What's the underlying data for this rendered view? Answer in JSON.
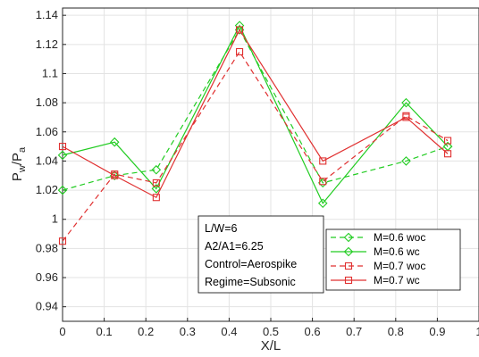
{
  "chart_data": {
    "type": "line",
    "title": "",
    "xlabel": "X/L",
    "ylabel_main": "P",
    "ylabel_sub1": "w",
    "ylabel_sep": "/P",
    "ylabel_sub2": "a",
    "xlim": [
      0,
      1
    ],
    "ylim": [
      0.93,
      1.145
    ],
    "xticks": [
      "0",
      "0.1",
      "0.2",
      "0.3",
      "0.4",
      "0.5",
      "0.6",
      "0.7",
      "0.8",
      "0.9",
      "1"
    ],
    "yticks": [
      "0.94",
      "0.96",
      "0.98",
      "1",
      "1.02",
      "1.04",
      "1.06",
      "1.08",
      "1.1",
      "1.12",
      "1.14"
    ],
    "grid": true,
    "legend_position": "bottom-right",
    "x": [
      0,
      0.125,
      0.225,
      0.425,
      0.625,
      0.825,
      0.925
    ],
    "series": [
      {
        "name": "M=0.6 woc",
        "color": "#22cc22",
        "dash": "dashed",
        "marker": "diamond",
        "values": [
          1.02,
          1.03,
          1.034,
          1.13,
          1.025,
          1.04,
          1.05
        ]
      },
      {
        "name": "M=0.6 wc",
        "color": "#22cc22",
        "dash": "solid",
        "marker": "diamond",
        "values": [
          1.044,
          1.053,
          1.021,
          1.133,
          1.011,
          1.08,
          1.05
        ]
      },
      {
        "name": "M=0.7 woc",
        "color": "#e03030",
        "dash": "dashed",
        "marker": "square",
        "values": [
          0.985,
          1.031,
          1.025,
          1.115,
          1.026,
          1.071,
          1.054
        ]
      },
      {
        "name": "M=0.7 wc",
        "color": "#e03030",
        "dash": "solid",
        "marker": "square",
        "values": [
          1.05,
          1.03,
          1.015,
          1.13,
          1.04,
          1.07,
          1.045
        ]
      }
    ],
    "annotation": [
      "L/W=6",
      "A2/A1=6.25",
      "Control=Aerospike",
      "Regime=Subsonic"
    ]
  }
}
